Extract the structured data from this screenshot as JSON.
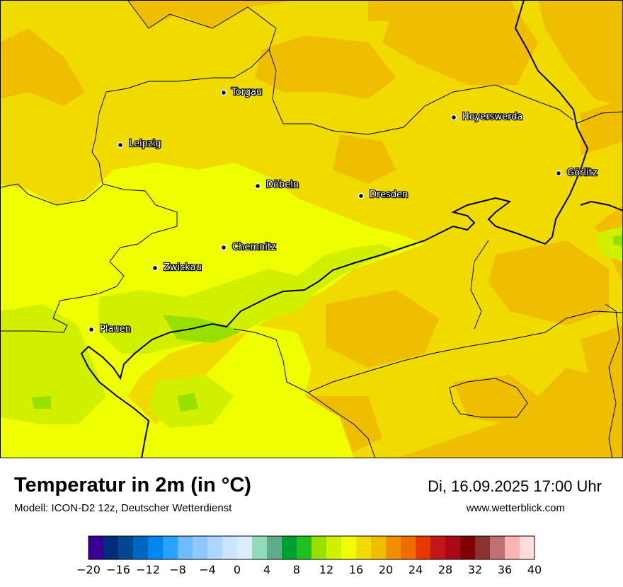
{
  "title": "Temperatur in 2m (in °C)",
  "model": "Modell: ICON-D2 12z, Deutscher Wetterdienst",
  "datetime": "Di, 16.09.2025 17:00 Uhr",
  "website": "www.wetterblick.com",
  "cities": [
    {
      "name": "Torgau"
    },
    {
      "name": "Hoyerswerda"
    },
    {
      "name": "Leipzig"
    },
    {
      "name": "Görlitz"
    },
    {
      "name": "Döbeln"
    },
    {
      "name": "Dresden"
    },
    {
      "name": "Chemnitz"
    },
    {
      "name": "Zwickau"
    },
    {
      "name": "Plauen"
    }
  ],
  "legend": {
    "min": -20,
    "max": 40,
    "step": 2,
    "tick_labels": [
      "−20",
      "−16",
      "−12",
      "−8",
      "−4",
      "0",
      "4",
      "8",
      "12",
      "16",
      "20",
      "24",
      "28",
      "32",
      "36",
      "40"
    ],
    "colors": [
      "#3a0096",
      "#002c7a",
      "#00478f",
      "#0066c4",
      "#0088f0",
      "#2aa0ff",
      "#70baff",
      "#8ec8ff",
      "#abd6ff",
      "#c8e4ff",
      "#dcedff",
      "#90dcb8",
      "#60ac8a",
      "#00a030",
      "#20c020",
      "#98e000",
      "#d0f000",
      "#f0ff00",
      "#f0da00",
      "#f0be00",
      "#f09000",
      "#f06c00",
      "#e83800",
      "#c01818",
      "#a80818",
      "#800000",
      "#8c3030",
      "#c07070",
      "#ffb4b4",
      "#ffdcdc"
    ]
  },
  "palette": {
    "orange": "#f0be00",
    "yellow_orange": "#f0da00",
    "yellow": "#f0ff00",
    "lime": "#d0f000",
    "green": "#98e000"
  }
}
